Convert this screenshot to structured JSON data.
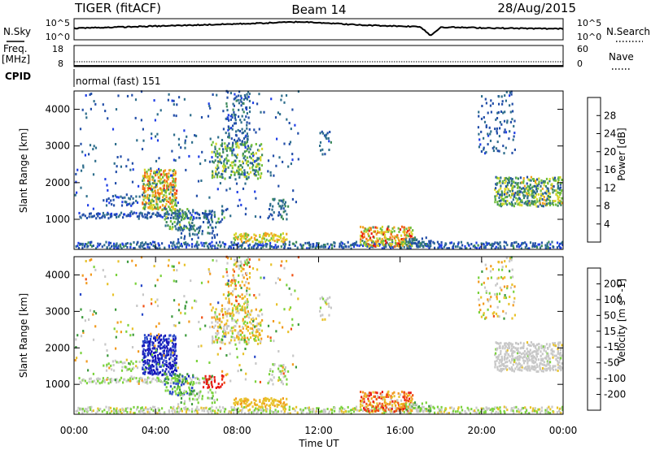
{
  "header": {
    "title": "TIGER (fitACF)",
    "beam": "Beam 14",
    "date": "28/Aug/2015"
  },
  "chart_data": {
    "type": "heatmap",
    "title": "TIGER (fitACF)",
    "xlabel": "Time UT",
    "x_ticks": [
      "00:00",
      "04:00",
      "08:00",
      "12:00",
      "16:00",
      "20:00",
      "00:00"
    ],
    "xlim_hours": [
      0,
      24
    ],
    "ylim_km": [
      180,
      4500
    ],
    "aux_panels": [
      {
        "name": "noise",
        "left_label": "N.Sky",
        "right_label": "N.Search",
        "left_ticks": [
          "10^5",
          "10^0"
        ],
        "right_ticks": [
          "10^5",
          "10^0"
        ],
        "sky_level_hours": [
          [
            0,
            0.55
          ],
          [
            3,
            0.62
          ],
          [
            6,
            0.7
          ],
          [
            9,
            0.78
          ],
          [
            11,
            0.85
          ],
          [
            12,
            0.82
          ],
          [
            14,
            0.7
          ],
          [
            17,
            0.62
          ],
          [
            17.5,
            0.2
          ],
          [
            18,
            0.6
          ],
          [
            21,
            0.55
          ],
          [
            24,
            0.52
          ]
        ]
      },
      {
        "name": "frequency",
        "left_label": "Freq.",
        "left_unit": "[MHz]",
        "right_label": "Nave",
        "left_ticks": [
          "18",
          "8"
        ],
        "right_ticks": [
          "60",
          "0"
        ],
        "freq_mhz": 9.9
      },
      {
        "name": "cpid",
        "label": "CPID",
        "program": "normal (fast) 151"
      }
    ],
    "panels": [
      {
        "name": "power",
        "ylabel": "Slant Range [km]",
        "y_ticks": [
          1000,
          2000,
          3000,
          4000
        ],
        "colorbar_label": "Power [dB]",
        "colorbar_ticks": [
          "28",
          "24",
          "20",
          "16",
          "12",
          "8",
          "4"
        ],
        "colors": [
          "#1f3ee6",
          "#224ea8",
          "#2e6e8c",
          "#3d8a5c",
          "#6fbf3a",
          "#d6d62a",
          "#f2a21e",
          "#f06a14",
          "#e81a14"
        ],
        "vmin": 0,
        "vmax": 30
      },
      {
        "name": "velocity",
        "ylabel": "Slant Range [km]",
        "y_ticks": [
          1000,
          2000,
          3000,
          4000
        ],
        "colorbar_label": "Velocity [m s^-1]",
        "colorbar_ticks": [
          "200",
          "100",
          "50",
          "15",
          "-15",
          "-50",
          "-100",
          "-200"
        ],
        "colors": [
          "#e81a14",
          "#f05014",
          "#f29a1e",
          "#e8c22a",
          "#c8c8c8",
          "#7ad23c",
          "#3c9a3c",
          "#2848c8",
          "#1414b8"
        ],
        "vmin": -250,
        "vmax": 250
      }
    ],
    "scatter_regions": [
      {
        "t0": 0.0,
        "t1": 24.0,
        "r0": 200,
        "r1": 380,
        "density": 0.55,
        "power": 6,
        "power_spread": 5,
        "velocity": 10,
        "velocity_spread": 60
      },
      {
        "t0": 0.2,
        "t1": 6.8,
        "r0": 1020,
        "r1": 1180,
        "density": 0.75,
        "power": 5,
        "power_spread": 3,
        "velocity": 20,
        "velocity_spread": 40
      },
      {
        "t0": 1.5,
        "t1": 3.2,
        "r0": 1350,
        "r1": 1650,
        "density": 0.35,
        "power": 6,
        "power_spread": 4,
        "velocity": 30,
        "velocity_spread": 60
      },
      {
        "t0": 3.3,
        "t1": 5.0,
        "r0": 1250,
        "r1": 2350,
        "density": 0.8,
        "power": 19,
        "power_spread": 8,
        "velocity": 200,
        "velocity_spread": 30
      },
      {
        "t0": 4.4,
        "t1": 5.8,
        "r0": 700,
        "r1": 1300,
        "density": 0.55,
        "power": 12,
        "power_spread": 6,
        "velocity": 120,
        "velocity_spread": 80
      },
      {
        "t0": 6.3,
        "t1": 7.4,
        "r0": 900,
        "r1": 1250,
        "density": 0.5,
        "power": 10,
        "power_spread": 5,
        "velocity": -220,
        "velocity_spread": 30
      },
      {
        "t0": 5.0,
        "t1": 7.0,
        "r0": 450,
        "r1": 850,
        "density": 0.3,
        "power": 8,
        "power_spread": 4,
        "velocity": 50,
        "velocity_spread": 60
      },
      {
        "t0": 6.7,
        "t1": 9.2,
        "r0": 2100,
        "r1": 3100,
        "density": 0.45,
        "power": 13,
        "power_spread": 6,
        "velocity": -30,
        "velocity_spread": 80
      },
      {
        "t0": 7.4,
        "t1": 8.6,
        "r0": 3000,
        "r1": 4500,
        "density": 0.3,
        "power": 7,
        "power_spread": 4,
        "velocity": -40,
        "velocity_spread": 120
      },
      {
        "t0": 7.8,
        "t1": 10.4,
        "r0": 380,
        "r1": 620,
        "density": 0.65,
        "power": 19,
        "power_spread": 4,
        "velocity": -70,
        "velocity_spread": 40
      },
      {
        "t0": 9.5,
        "t1": 10.5,
        "r0": 1000,
        "r1": 1600,
        "density": 0.3,
        "power": 8,
        "power_spread": 4,
        "velocity": 20,
        "velocity_spread": 60
      },
      {
        "t0": 12.0,
        "t1": 12.6,
        "r0": 2700,
        "r1": 3400,
        "density": 0.3,
        "power": 7,
        "power_spread": 4,
        "velocity": 10,
        "velocity_spread": 60
      },
      {
        "t0": 14.0,
        "t1": 16.6,
        "r0": 250,
        "r1": 800,
        "density": 0.7,
        "power": 21,
        "power_spread": 8,
        "velocity": -120,
        "velocity_spread": 120
      },
      {
        "t0": 16.2,
        "t1": 17.6,
        "r0": 250,
        "r1": 500,
        "density": 0.5,
        "power": 8,
        "power_spread": 4,
        "velocity": 40,
        "velocity_spread": 60
      },
      {
        "t0": 20.6,
        "t1": 23.9,
        "r0": 1350,
        "r1": 2150,
        "density": 0.75,
        "power": 13,
        "power_spread": 8,
        "velocity": 0,
        "velocity_spread": 30
      },
      {
        "t0": 19.8,
        "t1": 21.6,
        "r0": 2800,
        "r1": 4500,
        "density": 0.18,
        "power": 6,
        "power_spread": 3,
        "velocity": -20,
        "velocity_spread": 120
      },
      {
        "t0": 0.0,
        "t1": 11.0,
        "r0": 1000,
        "r1": 4500,
        "density": 0.04,
        "power": 6,
        "power_spread": 4,
        "velocity": 0,
        "velocity_spread": 150
      }
    ]
  }
}
